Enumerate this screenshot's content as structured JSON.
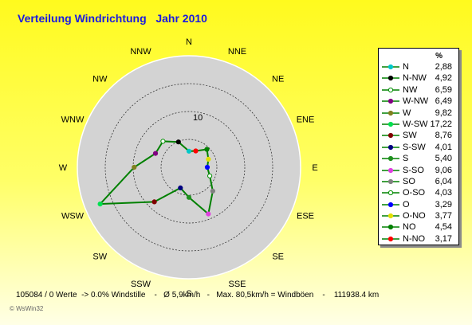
{
  "title": "Verteilung Windrichtung   Jahr 2010",
  "legend_unit": "%",
  "footer": "105084 / 0 Werte  -> 0.0% Windstille    -   Ø 5,9km/h   -   Max. 80,5km/h = Windböen    -    111938.4 km",
  "credit": "© WsWin32",
  "ring_label": "10",
  "directions": [
    "N",
    "NNE",
    "NE",
    "ENE",
    "E",
    "ESE",
    "SE",
    "SSE",
    "S",
    "SSW",
    "SW",
    "WSW",
    "W",
    "WNW",
    "NW",
    "NNW"
  ],
  "chart_data": {
    "type": "radar",
    "title": "Verteilung Windrichtung   Jahr 2010",
    "unit": "%",
    "rmax": 20,
    "ring_values": [
      5,
      10,
      15,
      20
    ],
    "series": [
      {
        "name": "N",
        "value": 2.88,
        "display": "2,88",
        "color": "#00c8c8",
        "hollow": false
      },
      {
        "name": "N-NW",
        "value": 4.92,
        "display": "4,92",
        "color": "#000000",
        "hollow": false
      },
      {
        "name": "NW",
        "value": 6.59,
        "display": "6,59",
        "color": "#009000",
        "hollow": true
      },
      {
        "name": "W-NW",
        "value": 6.49,
        "display": "6,49",
        "color": "#800080",
        "hollow": false
      },
      {
        "name": "W",
        "value": 9.82,
        "display": "9,82",
        "color": "#808020",
        "hollow": false
      },
      {
        "name": "W-SW",
        "value": 17.22,
        "display": "17,22",
        "color": "#00e050",
        "hollow": false
      },
      {
        "name": "SW",
        "value": 8.76,
        "display": "8,76",
        "color": "#800000",
        "hollow": false
      },
      {
        "name": "S-SW",
        "value": 4.01,
        "display": "4,01",
        "color": "#000080",
        "hollow": false
      },
      {
        "name": "S",
        "value": 5.4,
        "display": "5,40",
        "color": "#209020",
        "hollow": false
      },
      {
        "name": "S-SO",
        "value": 9.06,
        "display": "9,06",
        "color": "#e040e0",
        "hollow": false
      },
      {
        "name": "SO",
        "value": 6.04,
        "display": "6,04",
        "color": "#808080",
        "hollow": false
      },
      {
        "name": "O-SO",
        "value": 4.03,
        "display": "4,03",
        "color": "#009000",
        "hollow": true
      },
      {
        "name": "O",
        "value": 3.29,
        "display": "3,29",
        "color": "#0000ff",
        "hollow": false
      },
      {
        "name": "O-NO",
        "value": 3.77,
        "display": "3,77",
        "color": "#e0e000",
        "hollow": false
      },
      {
        "name": "NO",
        "value": 4.54,
        "display": "4,54",
        "color": "#008000",
        "hollow": false
      },
      {
        "name": "N-NO",
        "value": 3.17,
        "display": "3,17",
        "color": "#ff0000",
        "hollow": false
      }
    ],
    "series_angles_deg": [
      0,
      337.5,
      315,
      292.5,
      270,
      247.5,
      225,
      202.5,
      180,
      157.5,
      135,
      112.5,
      90,
      67.5,
      45,
      22.5
    ],
    "line_color": "#008000",
    "plot_background": "#d3d3d3"
  }
}
